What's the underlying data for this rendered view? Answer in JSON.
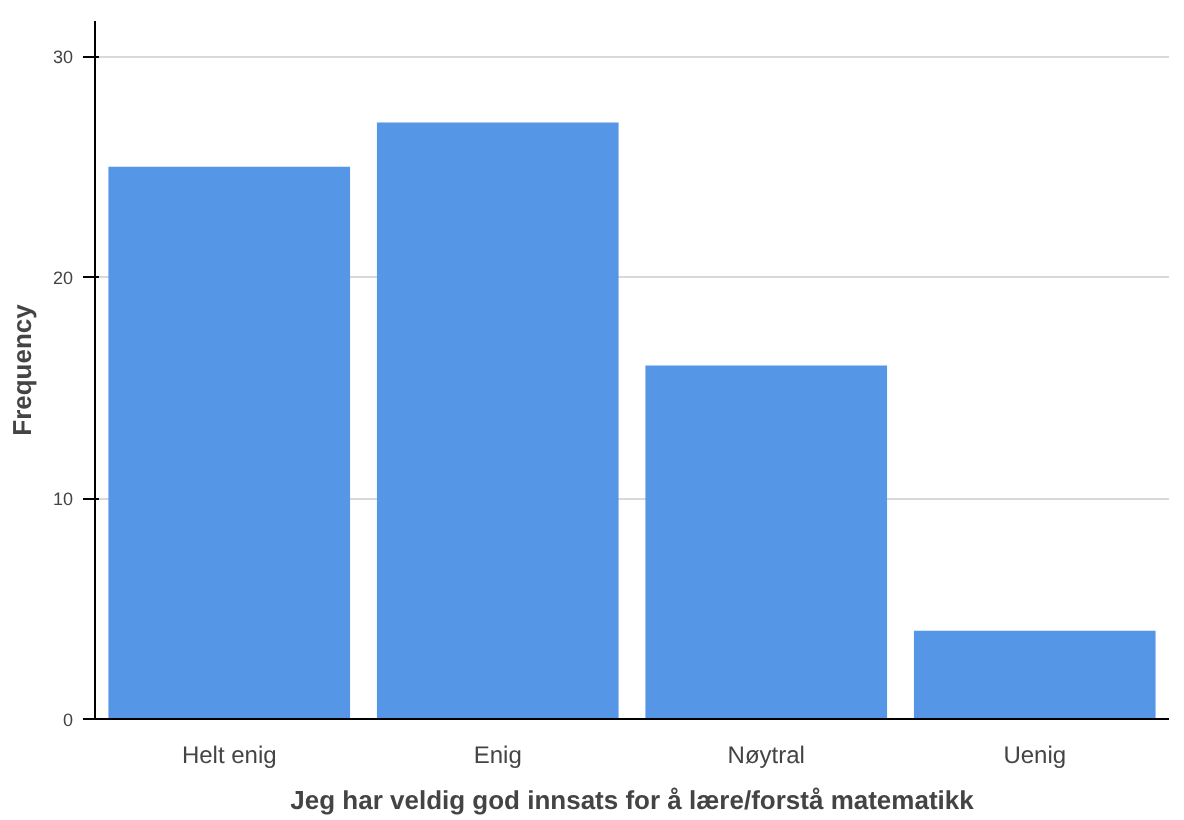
{
  "chart_data": {
    "type": "bar",
    "xlabel": "Jeg har veldig god innsats for å lære/forstå matematikk",
    "ylabel": "Frequency",
    "categories": [
      "Helt enig",
      "Enig",
      "Nøytral",
      "Uenig"
    ],
    "values": [
      25,
      27,
      16,
      4
    ],
    "color": "#5696e6",
    "ylim": [
      0,
      31.6
    ],
    "yticks": [
      0,
      10,
      20,
      30
    ],
    "grid": "y"
  }
}
